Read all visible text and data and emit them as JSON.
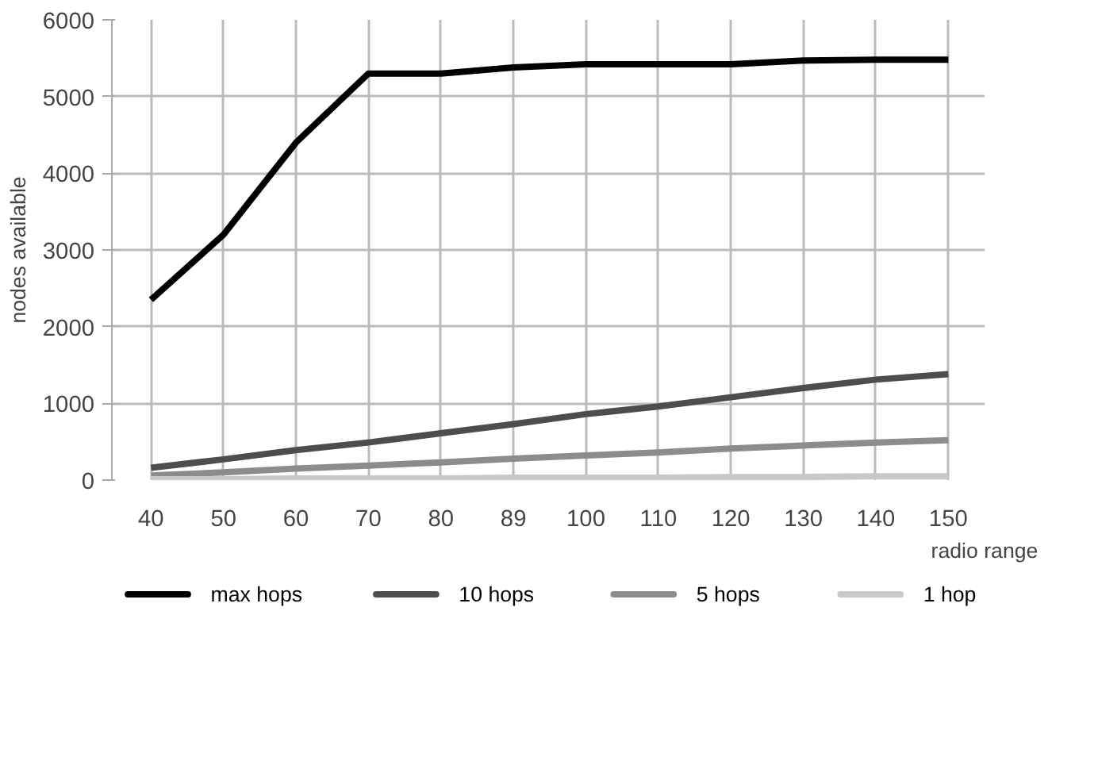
{
  "chart_data": {
    "type": "line",
    "xlabel": "radio range",
    "ylabel": "nodes available",
    "categories": [
      "40",
      "50",
      "60",
      "70",
      "80",
      "89",
      "100",
      "110",
      "120",
      "130",
      "140",
      "150"
    ],
    "ylim": [
      0,
      6000
    ],
    "yticks": [
      0,
      1000,
      2000,
      3000,
      4000,
      5000,
      6000
    ],
    "grid": true,
    "legend": "bottom",
    "line_style": "solid",
    "series": [
      {
        "name": "max hops",
        "color": "#000000",
        "values": [
          2350,
          3200,
          4400,
          5300,
          5300,
          5380,
          5420,
          5420,
          5420,
          5470,
          5480,
          5480
        ]
      },
      {
        "name": "10 hops",
        "color": "#4d4d4d",
        "values": [
          160,
          270,
          390,
          490,
          610,
          730,
          860,
          960,
          1080,
          1200,
          1310,
          1380
        ]
      },
      {
        "name": "5 hops",
        "color": "#8c8c8c",
        "values": [
          60,
          100,
          150,
          190,
          230,
          280,
          320,
          360,
          410,
          450,
          490,
          520
        ]
      },
      {
        "name": "1 hop",
        "color": "#c8c8c8",
        "values": [
          10,
          10,
          20,
          20,
          20,
          30,
          30,
          30,
          40,
          40,
          50,
          50
        ]
      }
    ]
  }
}
